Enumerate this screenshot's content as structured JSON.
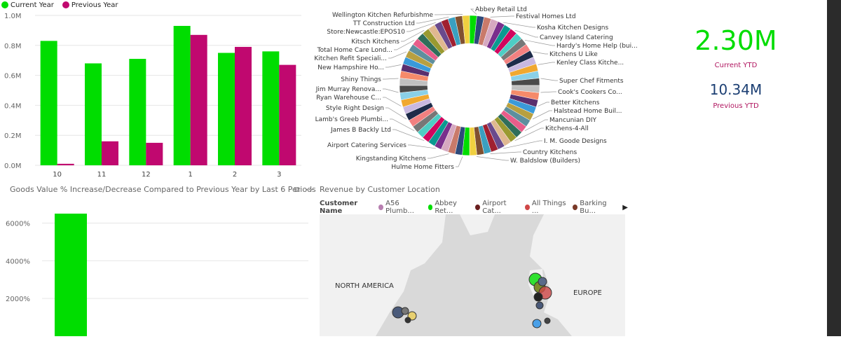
{
  "legend": {
    "current": "Current Year",
    "previous": "Previous Year"
  },
  "colors": {
    "current": "#00dd00",
    "previous": "#c0086f",
    "kpi_green": "#00dd00",
    "kpi_blue": "#1c3f73",
    "kpi_label": "#b0155f",
    "map_bg": "#d9d9d9"
  },
  "chart_data": [
    {
      "type": "bar",
      "categories": [
        "10",
        "11",
        "12",
        "1",
        "2",
        "3"
      ],
      "series": [
        {
          "name": "Current Year",
          "values": [
            0.83,
            0.68,
            0.71,
            0.93,
            0.75,
            0.76
          ]
        },
        {
          "name": "Previous Year",
          "values": [
            0.01,
            0.16,
            0.15,
            0.87,
            0.79,
            0.67
          ]
        }
      ],
      "yticks": [
        "0.0M",
        "0.2M",
        "0.4M",
        "0.6M",
        "0.8M",
        "1.0M"
      ],
      "ylim": [
        0,
        1.0
      ]
    },
    {
      "type": "pie",
      "donut": true,
      "slice_count": 60,
      "labels_right": [
        "Abbey Retail Ltd",
        "Festival Homes Ltd",
        "Kosha Kitchen Designs",
        "Canvey Island Catering",
        "Hardy's Home Help (bui...",
        "Kitchens U Like",
        "Kenley Class Kitche...",
        "Super Chef Fitments",
        "Cook's Cookers Co...",
        "Better Kitchens",
        "Halstead Home Buil...",
        "Mancunian DIY",
        "Kitchens-4-All",
        "I. M. Goode Designs",
        "Country Kitchens",
        "W. Baldslow (Builders)"
      ],
      "labels_left": [
        "Wellington Kitchen Refurbishme",
        "TT Construction Ltd",
        "Store:Newcastle:EPOS10",
        "Kitsch Kitchens",
        "Total Home Care Lond...",
        "Kitchen Refit Speciali...",
        "New Hampshire Ho...",
        "Shiny Things",
        "Jim Murray Renova...",
        "Ryan Warehouse C...",
        "Style Right Design",
        "Lamb's Greeb Plumbi...",
        "James B Backly Ltd",
        "Airport Catering Services",
        "Kingstanding Kitchens",
        "Hulme Home Fitters"
      ]
    },
    {
      "type": "bar",
      "title": "Goods Value % Increase/Decrease Compared to Previous Year by Last 6 Periods",
      "values": [
        6500
      ],
      "yticks": [
        "2000%",
        "4000%",
        "6000%"
      ]
    }
  ],
  "kpi": {
    "current_value": "2.30M",
    "current_label": "Current YTD",
    "previous_value": "10.34M",
    "previous_label": "Previous YTD"
  },
  "map": {
    "title": "Revenue by Customer Location",
    "legend_title": "Customer Name",
    "legend_items": [
      {
        "label": "A56 Plumb...",
        "color": "#b77fb0"
      },
      {
        "label": "Abbey Ret...",
        "color": "#00dd00"
      },
      {
        "label": "Airport Cat...",
        "color": "#6a1f1f"
      },
      {
        "label": "All Things ...",
        "color": "#d04848"
      },
      {
        "label": "Barking Bu...",
        "color": "#7a3a28"
      }
    ],
    "region_labels": {
      "north_america": "NORTH AMERICA",
      "europe": "EUROPE"
    }
  }
}
